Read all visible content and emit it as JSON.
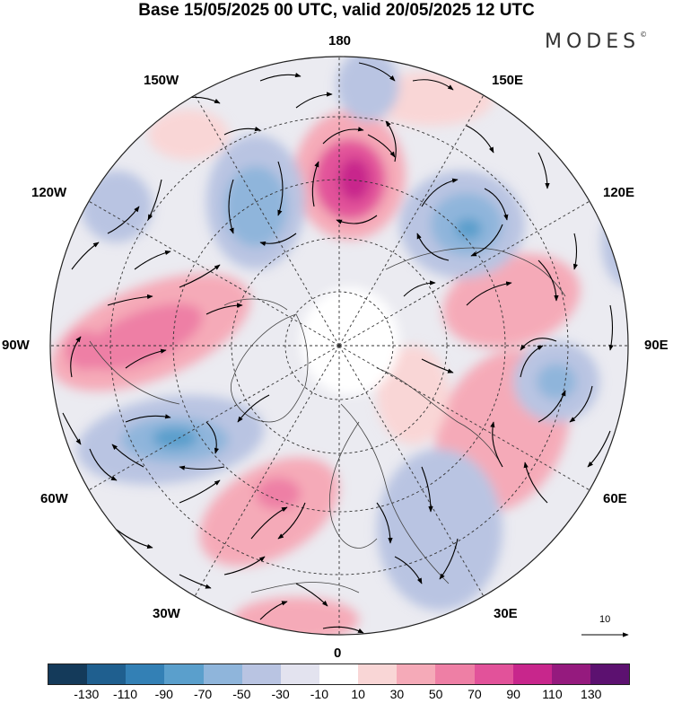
{
  "title": "Base 15/05/2025 00 UTC, valid 20/05/2025 12 UTC",
  "brand": "MODES",
  "brand_mark": "©",
  "lon_labels": {
    "n180": "180",
    "w150": "150W",
    "e150": "150E",
    "w120": "120W",
    "e120": "120E",
    "w90": "90W",
    "e90": "90E",
    "w60": "60W",
    "e60": "60E",
    "w30": "30W",
    "e30": "30E",
    "s0": "0"
  },
  "reference_vector": "10",
  "colorbar": {
    "colors": [
      "#143a5a",
      "#1f5f8f",
      "#3380b5",
      "#5a9fcc",
      "#8fb5db",
      "#b9c4e2",
      "#e3e3ef",
      "#ffffff",
      "#f9d6d6",
      "#f5aab8",
      "#ee7fa5",
      "#e2529a",
      "#c8268c",
      "#951a7e",
      "#5c1170"
    ],
    "ticks": [
      "-130",
      "-110",
      "-90",
      "-70",
      "-50",
      "-30",
      "-10",
      "10",
      "30",
      "50",
      "70",
      "90",
      "110",
      "130"
    ]
  }
}
